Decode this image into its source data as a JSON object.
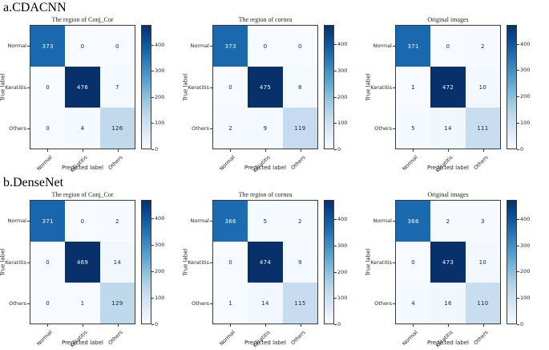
{
  "figure": {
    "background": "#ffffff",
    "colormap_name": "Blues",
    "colormap_stops": [
      "#f7fbff",
      "#deebf7",
      "#c6dbef",
      "#9ecae1",
      "#6baed6",
      "#4292c6",
      "#2171b5",
      "#08519c",
      "#08306b"
    ],
    "sections": [
      {
        "label": "a.CDACNN",
        "panel_indices": [
          0,
          1,
          2
        ]
      },
      {
        "label": "b.DenseNet",
        "panel_indices": [
          3,
          4,
          5
        ]
      }
    ]
  },
  "chart_data": [
    {
      "type": "heatmap",
      "model": "CDACNN",
      "title": "The region of Conj_Cor",
      "xlabel": "Predicted label",
      "ylabel": "True label",
      "x_categories": [
        "Normal",
        "Keratitis",
        "Others"
      ],
      "y_categories": [
        "Normal",
        "Keratitis",
        "Others"
      ],
      "matrix": [
        [
          373,
          0,
          0
        ],
        [
          0,
          476,
          7
        ],
        [
          0,
          4,
          126
        ]
      ],
      "colorbar_ticks": [
        0,
        100,
        200,
        300,
        400
      ],
      "colormap": "Blues",
      "vmin": 0
    },
    {
      "type": "heatmap",
      "model": "CDACNN",
      "title": "The region of cornea",
      "xlabel": "Predicted label",
      "ylabel": "True label",
      "x_categories": [
        "Normal",
        "Keratitis",
        "Others"
      ],
      "y_categories": [
        "Normal",
        "Keratitis",
        "Others"
      ],
      "matrix": [
        [
          373,
          0,
          0
        ],
        [
          0,
          475,
          8
        ],
        [
          2,
          9,
          119
        ]
      ],
      "colorbar_ticks": [
        0,
        100,
        200,
        300,
        400
      ],
      "colormap": "Blues",
      "vmin": 0
    },
    {
      "type": "heatmap",
      "model": "CDACNN",
      "title": "Original images",
      "xlabel": "Predicted label",
      "ylabel": "True label",
      "x_categories": [
        "Normal",
        "Keratitis",
        "Others"
      ],
      "y_categories": [
        "Normal",
        "Keratitis",
        "Others"
      ],
      "matrix": [
        [
          371,
          0,
          2
        ],
        [
          1,
          472,
          10
        ],
        [
          5,
          14,
          111
        ]
      ],
      "colorbar_ticks": [
        0,
        100,
        200,
        300,
        400
      ],
      "colormap": "Blues",
      "vmin": 0
    },
    {
      "type": "heatmap",
      "model": "DenseNet",
      "title": "The region of Conj_Cor",
      "xlabel": "Predicted label",
      "ylabel": "True label",
      "x_categories": [
        "Normal",
        "Keratitis",
        "Others"
      ],
      "y_categories": [
        "Normal",
        "Keratitis",
        "Others"
      ],
      "matrix": [
        [
          371,
          0,
          2
        ],
        [
          0,
          469,
          14
        ],
        [
          0,
          1,
          129
        ]
      ],
      "colorbar_ticks": [
        0,
        100,
        200,
        300,
        400
      ],
      "colormap": "Blues",
      "vmin": 0
    },
    {
      "type": "heatmap",
      "model": "DenseNet",
      "title": "The region of cornea",
      "xlabel": "Predicted label",
      "ylabel": "True label",
      "x_categories": [
        "Normal",
        "Keratitis",
        "Others"
      ],
      "y_categories": [
        "Normal",
        "Keratitis",
        "Others"
      ],
      "matrix": [
        [
          366,
          5,
          2
        ],
        [
          0,
          474,
          9
        ],
        [
          1,
          14,
          115
        ]
      ],
      "colorbar_ticks": [
        0,
        100,
        200,
        300,
        400
      ],
      "colormap": "Blues",
      "vmin": 0
    },
    {
      "type": "heatmap",
      "model": "DenseNet",
      "title": "Original images",
      "xlabel": "Predicted label",
      "ylabel": "True label",
      "x_categories": [
        "Normal",
        "Keratitis",
        "Others"
      ],
      "y_categories": [
        "Normal",
        "Keratitis",
        "Others"
      ],
      "matrix": [
        [
          368,
          2,
          3
        ],
        [
          0,
          473,
          10
        ],
        [
          4,
          16,
          110
        ]
      ],
      "colorbar_ticks": [
        0,
        100,
        200,
        300,
        400
      ],
      "colormap": "Blues",
      "vmin": 0
    }
  ]
}
